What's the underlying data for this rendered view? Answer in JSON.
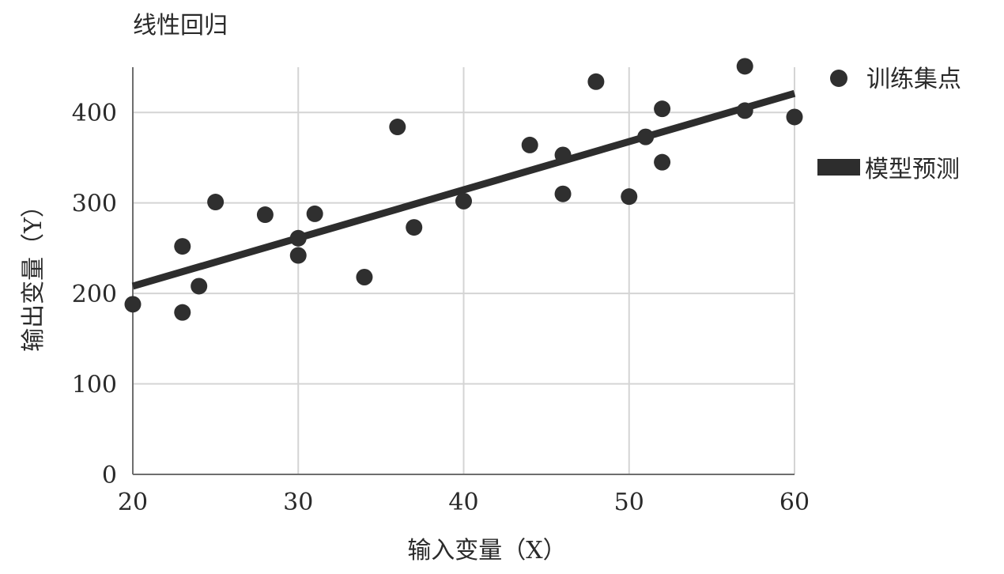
{
  "chart_data": {
    "type": "scatter",
    "title": "线性回归",
    "xlabel": "输入变量（X）",
    "ylabel": "输出变量（Y）",
    "xlim": [
      20,
      60
    ],
    "ylim": [
      0,
      450
    ],
    "xticks": [
      20,
      30,
      40,
      50,
      60
    ],
    "yticks": [
      0,
      100,
      200,
      300,
      400
    ],
    "grid": true,
    "legend_position": "right",
    "series": [
      {
        "name": "训练集点",
        "kind": "scatter",
        "color": "#2f2f2f",
        "points": [
          {
            "x": 20,
            "y": 188
          },
          {
            "x": 23,
            "y": 252
          },
          {
            "x": 23,
            "y": 179
          },
          {
            "x": 24,
            "y": 208
          },
          {
            "x": 25,
            "y": 301
          },
          {
            "x": 28,
            "y": 287
          },
          {
            "x": 30,
            "y": 261
          },
          {
            "x": 30,
            "y": 242
          },
          {
            "x": 31,
            "y": 288
          },
          {
            "x": 34,
            "y": 218
          },
          {
            "x": 36,
            "y": 384
          },
          {
            "x": 37,
            "y": 273
          },
          {
            "x": 40,
            "y": 302
          },
          {
            "x": 44,
            "y": 364
          },
          {
            "x": 46,
            "y": 353
          },
          {
            "x": 46,
            "y": 310
          },
          {
            "x": 48,
            "y": 434
          },
          {
            "x": 50,
            "y": 307
          },
          {
            "x": 51,
            "y": 373
          },
          {
            "x": 52,
            "y": 404
          },
          {
            "x": 52,
            "y": 345
          },
          {
            "x": 57,
            "y": 451
          },
          {
            "x": 57,
            "y": 402
          },
          {
            "x": 60,
            "y": 395
          }
        ]
      },
      {
        "name": "模型预测",
        "kind": "line",
        "color": "#2d2d2d",
        "points": [
          {
            "x": 20,
            "y": 208
          },
          {
            "x": 60,
            "y": 421
          }
        ]
      }
    ]
  }
}
